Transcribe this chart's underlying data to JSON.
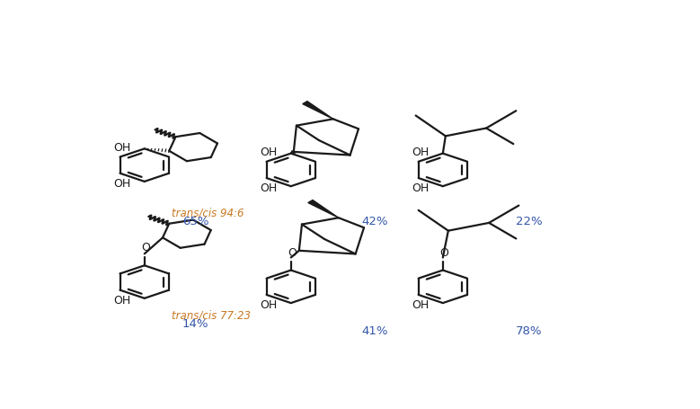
{
  "figsize": [
    7.79,
    4.56
  ],
  "dpi": 100,
  "bg": "#ffffff",
  "black": "#1a1a1a",
  "orange": "#c87820",
  "blue": "#3355aa",
  "lw": 1.6,
  "br": 0.052,
  "hr": 0.046,
  "cells": [
    {
      "id": 1,
      "ox": 0.13,
      "oy": 0.67,
      "type": "catechol_cyclohexyl",
      "italic": "trans/cis 94:6",
      "pct": "65%",
      "itx": 0.155,
      "ity": 0.48,
      "ptx": 0.175,
      "pty": 0.455
    },
    {
      "id": 2,
      "ox": 0.43,
      "oy": 0.67,
      "type": "catechol_bornyl",
      "italic": "",
      "pct": "42%",
      "itx": 0.0,
      "ity": 0.0,
      "ptx": 0.505,
      "pty": 0.455
    },
    {
      "id": 3,
      "ox": 0.72,
      "oy": 0.67,
      "type": "catechol_tbutyl",
      "italic": "",
      "pct": "22%",
      "itx": 0.0,
      "ity": 0.0,
      "ptx": 0.79,
      "pty": 0.455
    },
    {
      "id": 4,
      "ox": 0.13,
      "oy": 0.27,
      "type": "phenol_cyclohexyl",
      "italic": "trans/cis 77:23",
      "pct": "14%",
      "itx": 0.155,
      "ity": 0.155,
      "ptx": 0.175,
      "pty": 0.13
    },
    {
      "id": 5,
      "ox": 0.43,
      "oy": 0.27,
      "type": "phenol_bornyl",
      "italic": "",
      "pct": "41%",
      "itx": 0.0,
      "ity": 0.0,
      "ptx": 0.505,
      "pty": 0.105
    },
    {
      "id": 6,
      "ox": 0.72,
      "oy": 0.27,
      "type": "phenol_tbutyl",
      "italic": "",
      "pct": "78%",
      "itx": 0.0,
      "ity": 0.0,
      "ptx": 0.79,
      "pty": 0.105
    }
  ]
}
